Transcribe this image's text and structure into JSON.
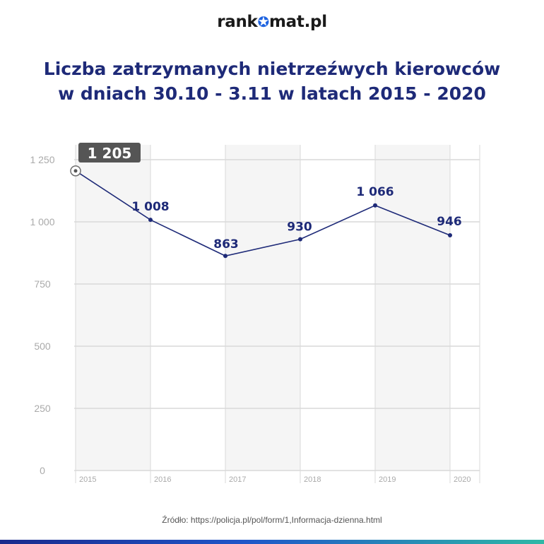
{
  "logo": {
    "prefix": "rank",
    "suffix": "mat.pl",
    "icon": "star-icon"
  },
  "title": {
    "line1": "Liczba zatrzymanych nietrzeźwych kierowców",
    "line2": "w dniach 30.10 - 3.11 w latach 2015 - 2020"
  },
  "source": "Źródło: https://policja.pl/pol/form/1,Informacja-dzienna.html",
  "colors": {
    "line": "#1e2a78",
    "highlight_badge": "#555555",
    "grid": "#d9d9d9",
    "band": "#f5f5f5",
    "axis_text": "#aaaaaa",
    "footer_gradient": [
      "#1a2a8c",
      "#1f56c9",
      "#2fb8a6"
    ]
  },
  "chart_data": {
    "type": "line",
    "categories": [
      "2015",
      "2016",
      "2017",
      "2018",
      "2019",
      "2020"
    ],
    "values": [
      1205,
      1008,
      863,
      930,
      1066,
      946
    ],
    "data_labels": [
      "1 205",
      "1 008",
      "863",
      "930",
      "1 066",
      "946"
    ],
    "highlighted_index": 0,
    "y_ticks": [
      0,
      250,
      500,
      750,
      1000,
      1250
    ],
    "y_tick_labels": [
      "0",
      "250",
      "500",
      "750",
      "1 000",
      "1 250"
    ],
    "ylim": [
      0,
      1250
    ],
    "grid": true,
    "xlabel": "",
    "ylabel": ""
  }
}
